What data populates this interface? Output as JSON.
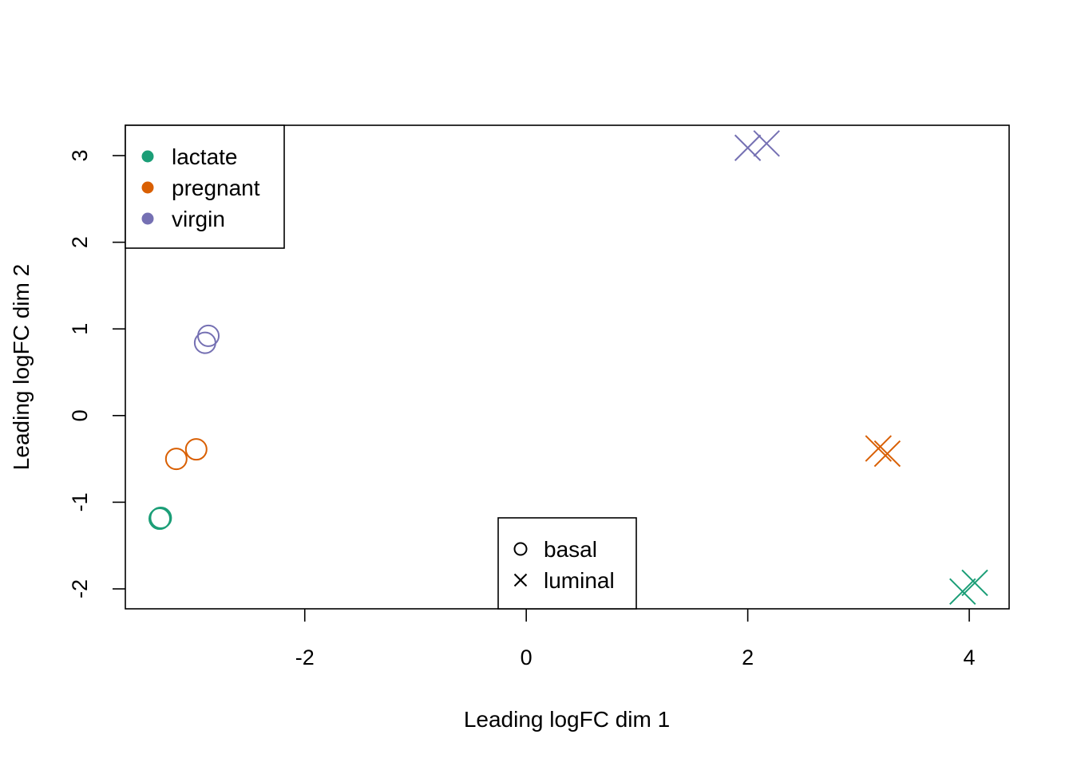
{
  "chart_data": {
    "type": "scatter",
    "title": "",
    "xlabel": "Leading logFC dim 1",
    "ylabel": "Leading logFC dim 2",
    "xlim": [
      -3.62,
      4.36
    ],
    "ylim": [
      -2.23,
      3.35
    ],
    "xticks": [
      -2,
      0,
      2,
      4
    ],
    "yticks": [
      -2,
      -1,
      0,
      1,
      2,
      3
    ],
    "xtick_labels": [
      "-2",
      "0",
      "2",
      "4"
    ],
    "ytick_labels": [
      "-2",
      "-1",
      "0",
      "1",
      "2",
      "3"
    ],
    "grid": false,
    "colors": {
      "lactate": "#1b9e77",
      "pregnant": "#d95f02",
      "virgin": "#7570b3"
    },
    "groups": [
      "lactate",
      "pregnant",
      "virgin"
    ],
    "shapes": {
      "basal": "circle",
      "luminal": "cross"
    },
    "points": [
      {
        "x": -3.3,
        "y": -1.18,
        "group": "lactate",
        "type": "basal"
      },
      {
        "x": -3.31,
        "y": -1.19,
        "group": "lactate",
        "type": "basal"
      },
      {
        "x": -3.16,
        "y": -0.5,
        "group": "pregnant",
        "type": "basal"
      },
      {
        "x": -2.98,
        "y": -0.39,
        "group": "pregnant",
        "type": "basal"
      },
      {
        "x": -2.9,
        "y": 0.84,
        "group": "virgin",
        "type": "basal"
      },
      {
        "x": -2.87,
        "y": 0.92,
        "group": "virgin",
        "type": "basal"
      },
      {
        "x": 3.94,
        "y": -2.03,
        "group": "lactate",
        "type": "luminal"
      },
      {
        "x": 4.05,
        "y": -1.93,
        "group": "lactate",
        "type": "luminal"
      },
      {
        "x": 3.18,
        "y": -0.38,
        "group": "pregnant",
        "type": "luminal"
      },
      {
        "x": 3.26,
        "y": -0.44,
        "group": "pregnant",
        "type": "luminal"
      },
      {
        "x": 2.0,
        "y": 3.09,
        "group": "virgin",
        "type": "luminal"
      },
      {
        "x": 2.17,
        "y": 3.14,
        "group": "virgin",
        "type": "luminal"
      }
    ],
    "legend_group": {
      "placement": "top-left",
      "entries": [
        "lactate",
        "pregnant",
        "virgin"
      ]
    },
    "legend_shape": {
      "placement": "bottom-center",
      "entries": [
        "basal",
        "luminal"
      ]
    }
  }
}
